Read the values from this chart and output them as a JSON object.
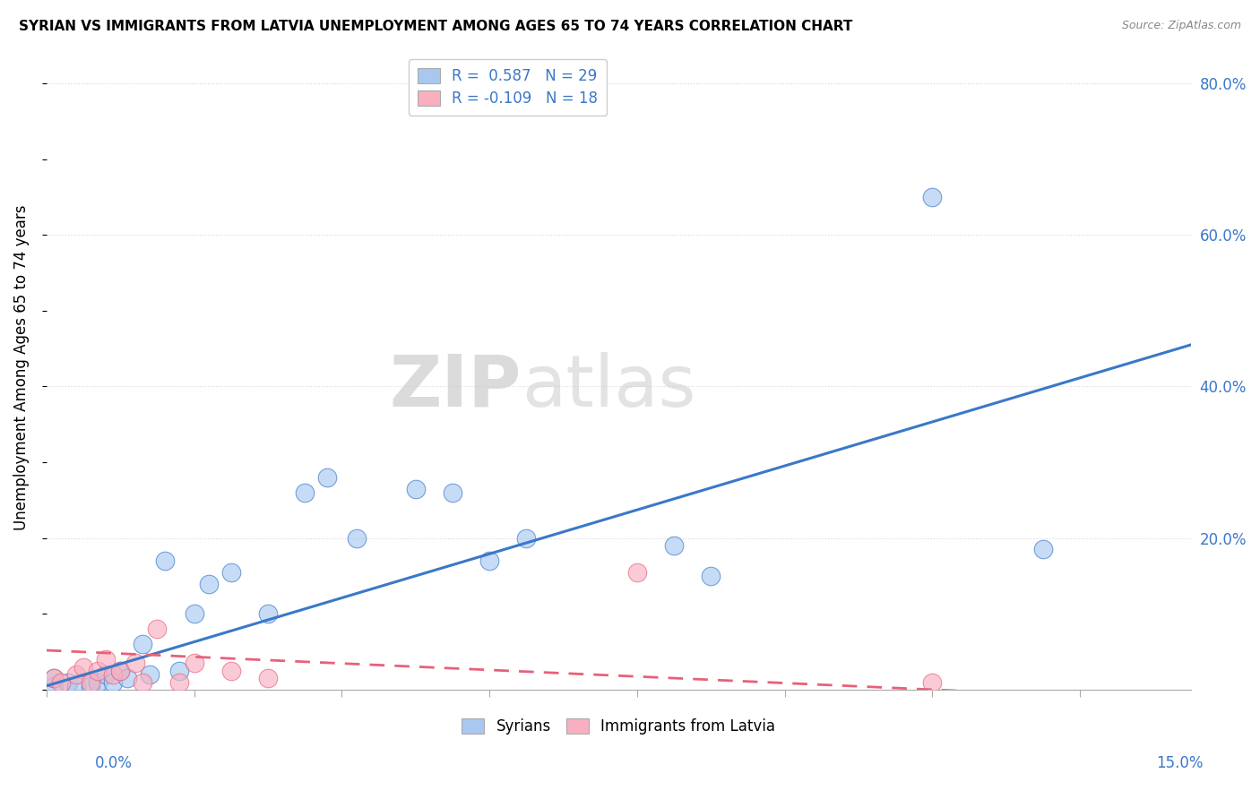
{
  "title": "SYRIAN VS IMMIGRANTS FROM LATVIA UNEMPLOYMENT AMONG AGES 65 TO 74 YEARS CORRELATION CHART",
  "source": "Source: ZipAtlas.com",
  "ylabel": "Unemployment Among Ages 65 to 74 years",
  "ylim": [
    0,
    0.85
  ],
  "xlim": [
    0,
    0.155
  ],
  "right_yticks": [
    0.0,
    0.2,
    0.4,
    0.6,
    0.8
  ],
  "right_yticklabels": [
    "",
    "20.0%",
    "40.0%",
    "60.0%",
    "80.0%"
  ],
  "syrian_R": 0.587,
  "syrian_N": 29,
  "latvia_R": -0.109,
  "latvia_N": 18,
  "syrian_color": "#a8c8f0",
  "latvia_color": "#f8b0c0",
  "syrian_line_color": "#3a78c9",
  "latvia_line_color": "#e8607a",
  "syrian_scatter_x": [
    0.001,
    0.001,
    0.003,
    0.004,
    0.006,
    0.007,
    0.008,
    0.009,
    0.01,
    0.011,
    0.013,
    0.014,
    0.016,
    0.018,
    0.02,
    0.022,
    0.025,
    0.03,
    0.035,
    0.038,
    0.042,
    0.05,
    0.055,
    0.06,
    0.065,
    0.085,
    0.09,
    0.12,
    0.135
  ],
  "syrian_scatter_y": [
    0.005,
    0.015,
    0.01,
    0.005,
    0.005,
    0.01,
    0.02,
    0.01,
    0.025,
    0.015,
    0.06,
    0.02,
    0.17,
    0.025,
    0.1,
    0.14,
    0.155,
    0.1,
    0.26,
    0.28,
    0.2,
    0.265,
    0.26,
    0.17,
    0.2,
    0.19,
    0.15,
    0.65,
    0.185
  ],
  "latvia_scatter_x": [
    0.001,
    0.002,
    0.004,
    0.005,
    0.006,
    0.007,
    0.008,
    0.009,
    0.01,
    0.012,
    0.013,
    0.015,
    0.018,
    0.02,
    0.025,
    0.03,
    0.08,
    0.12
  ],
  "latvia_scatter_y": [
    0.015,
    0.01,
    0.02,
    0.03,
    0.01,
    0.025,
    0.04,
    0.02,
    0.025,
    0.035,
    0.01,
    0.08,
    0.01,
    0.035,
    0.025,
    0.015,
    0.155,
    0.01
  ],
  "syrian_trend_x0": 0.0,
  "syrian_trend_y0": 0.005,
  "syrian_trend_x1": 0.155,
  "syrian_trend_y1": 0.455,
  "latvia_trend_x0": 0.0,
  "latvia_trend_y0": 0.052,
  "latvia_trend_x1": 0.155,
  "latvia_trend_y1": -0.015,
  "background_color": "#ffffff",
  "grid_color": "#d8d8d8"
}
